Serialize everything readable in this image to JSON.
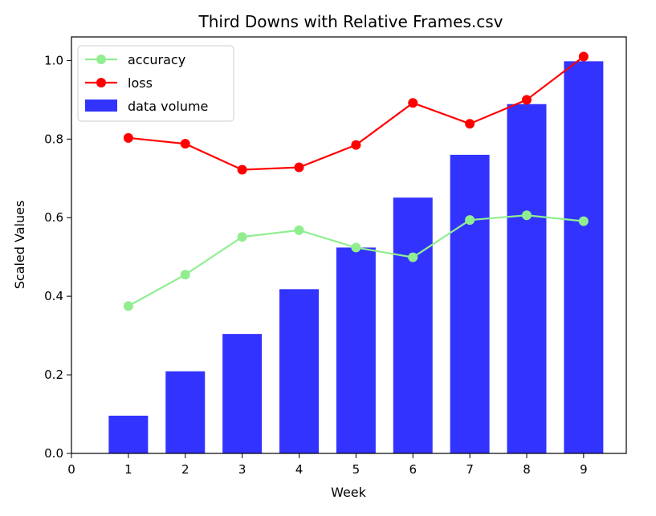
{
  "chart_data": {
    "type": "bar",
    "title": "Third Downs with Relative Frames.csv",
    "xlabel": "Week",
    "ylabel": "Scaled Values",
    "xlim": [
      0,
      9.75
    ],
    "ylim": [
      0,
      1.06
    ],
    "x_ticks": [
      "0",
      "1",
      "2",
      "3",
      "4",
      "5",
      "6",
      "7",
      "8",
      "9"
    ],
    "y_ticks": [
      "0.0",
      "0.2",
      "0.4",
      "0.6",
      "0.8",
      "1.0"
    ],
    "categories": [
      1,
      2,
      3,
      4,
      5,
      6,
      7,
      8,
      9
    ],
    "grid": false,
    "legend_position": "top-left",
    "series": [
      {
        "name": "accuracy",
        "kind": "line",
        "color": "#90ee90",
        "values": [
          0.375,
          0.455,
          0.551,
          0.568,
          0.524,
          0.499,
          0.594,
          0.606,
          0.591
        ]
      },
      {
        "name": "loss",
        "kind": "line",
        "color": "#ff0000",
        "values": [
          0.803,
          0.788,
          0.722,
          0.728,
          0.785,
          0.892,
          0.839,
          0.9,
          1.01
        ]
      },
      {
        "name": "data volume",
        "kind": "bar",
        "color": "#0000ff",
        "values": [
          0.096,
          0.209,
          0.304,
          0.418,
          0.524,
          0.651,
          0.76,
          0.889,
          0.998
        ]
      }
    ]
  }
}
